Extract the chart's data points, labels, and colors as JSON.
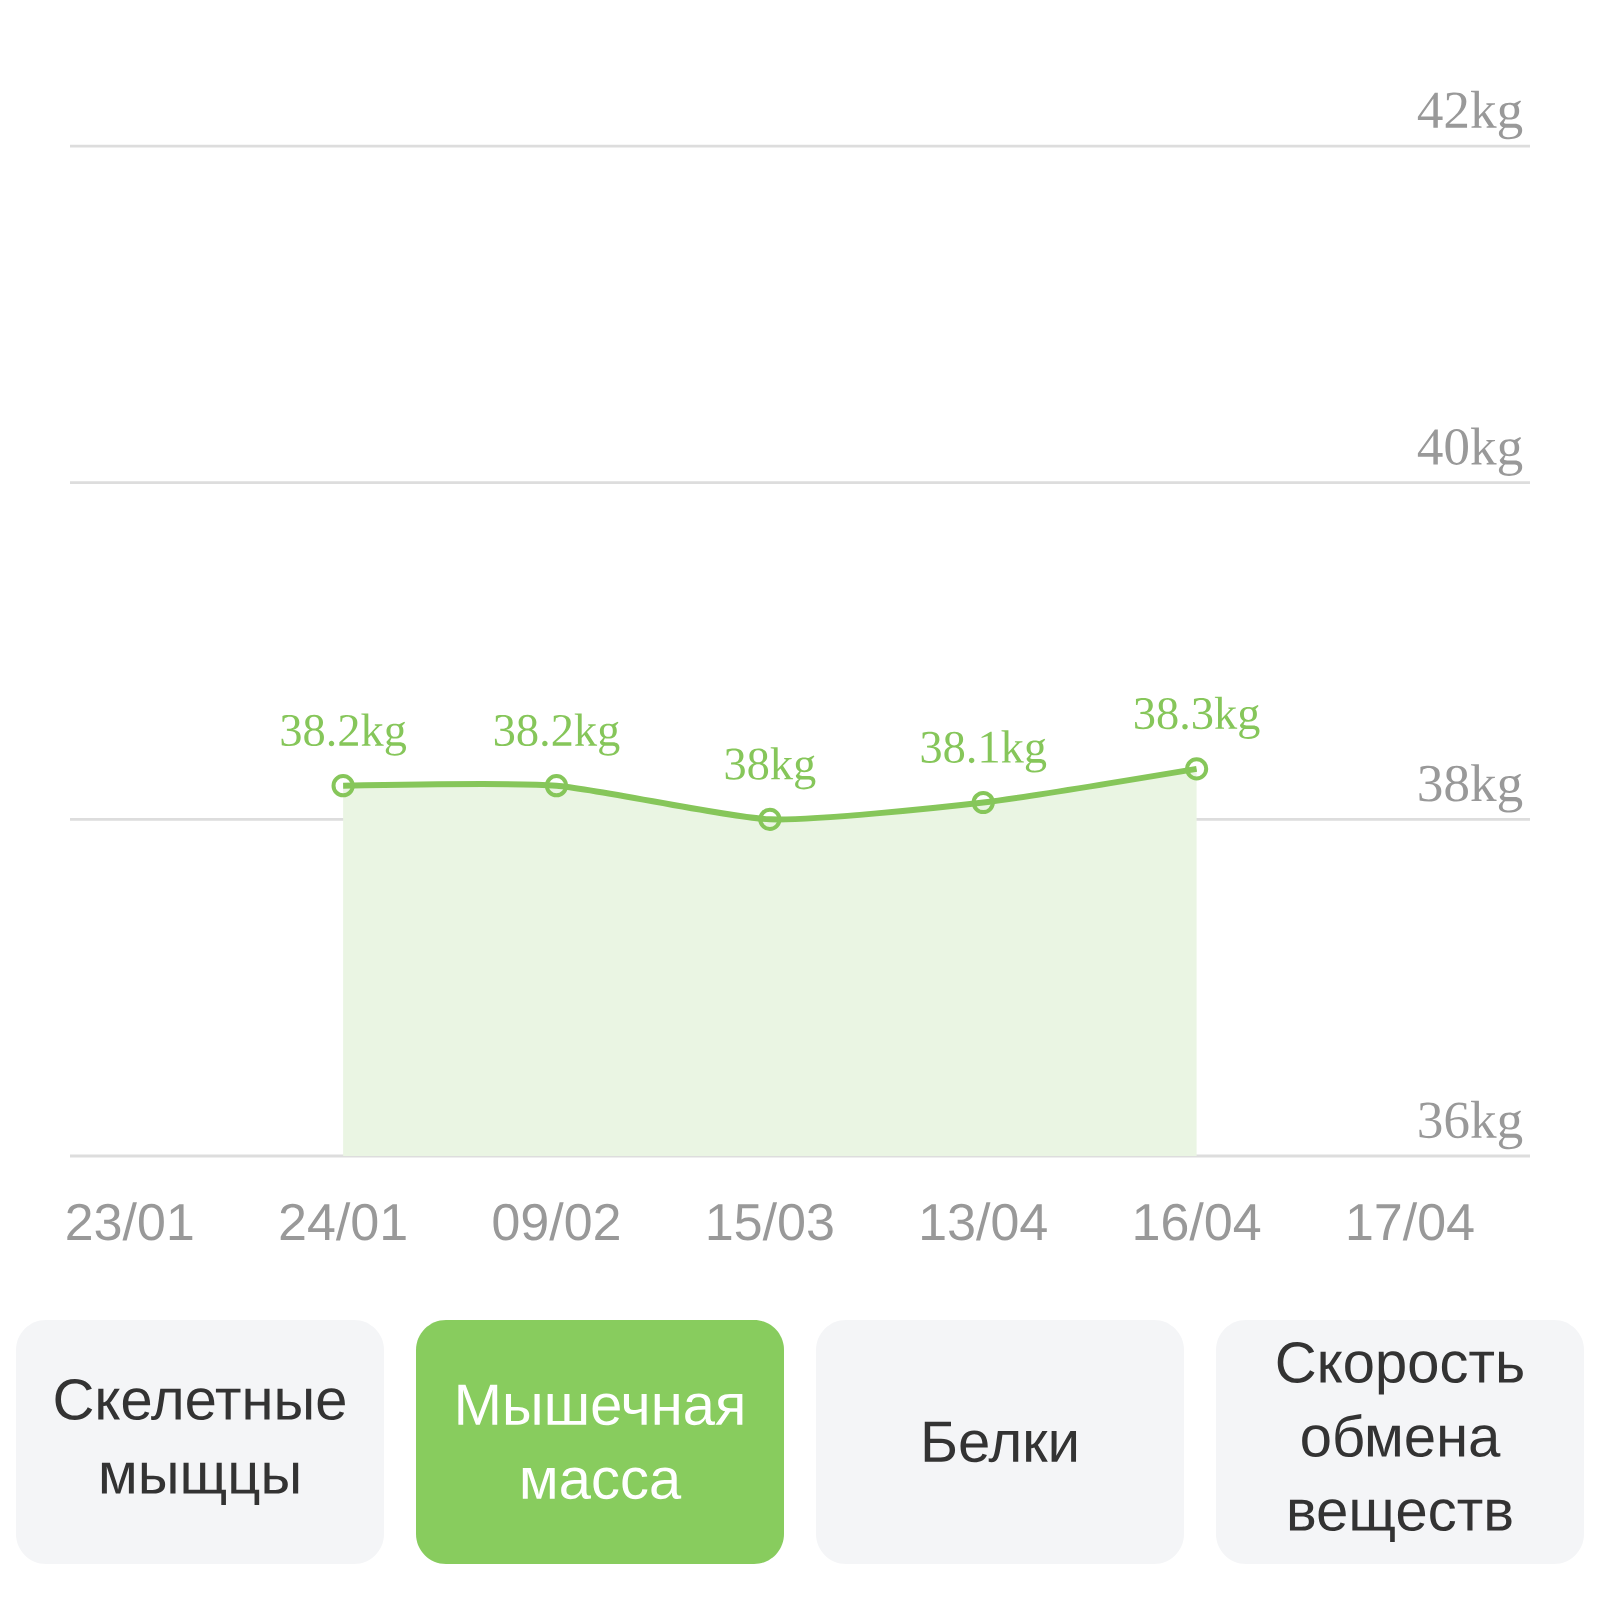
{
  "chart_data": {
    "type": "area",
    "title": "Мышечная масса",
    "categories": [
      "23/01",
      "24/01",
      "09/02",
      "15/03",
      "13/04",
      "16/04",
      "17/04"
    ],
    "values": [
      null,
      38.2,
      38.2,
      38,
      38.1,
      38.3,
      null
    ],
    "value_labels": [
      null,
      "38.2kg",
      "38.2kg",
      "38kg",
      "38.1kg",
      "38.3kg",
      null
    ],
    "color": "#86c65a",
    "ylim": [
      36,
      42
    ],
    "yticks": [
      {
        "value": 36,
        "label": "36kg"
      },
      {
        "value": 38,
        "label": "38kg"
      },
      {
        "value": 40,
        "label": "40kg"
      },
      {
        "value": 42,
        "label": "42kg"
      }
    ],
    "grid": "y",
    "marker": "circle",
    "annotations": [
      "Скелетные мыщцы",
      "Белки",
      "Скорость обмена веществ"
    ]
  }
}
